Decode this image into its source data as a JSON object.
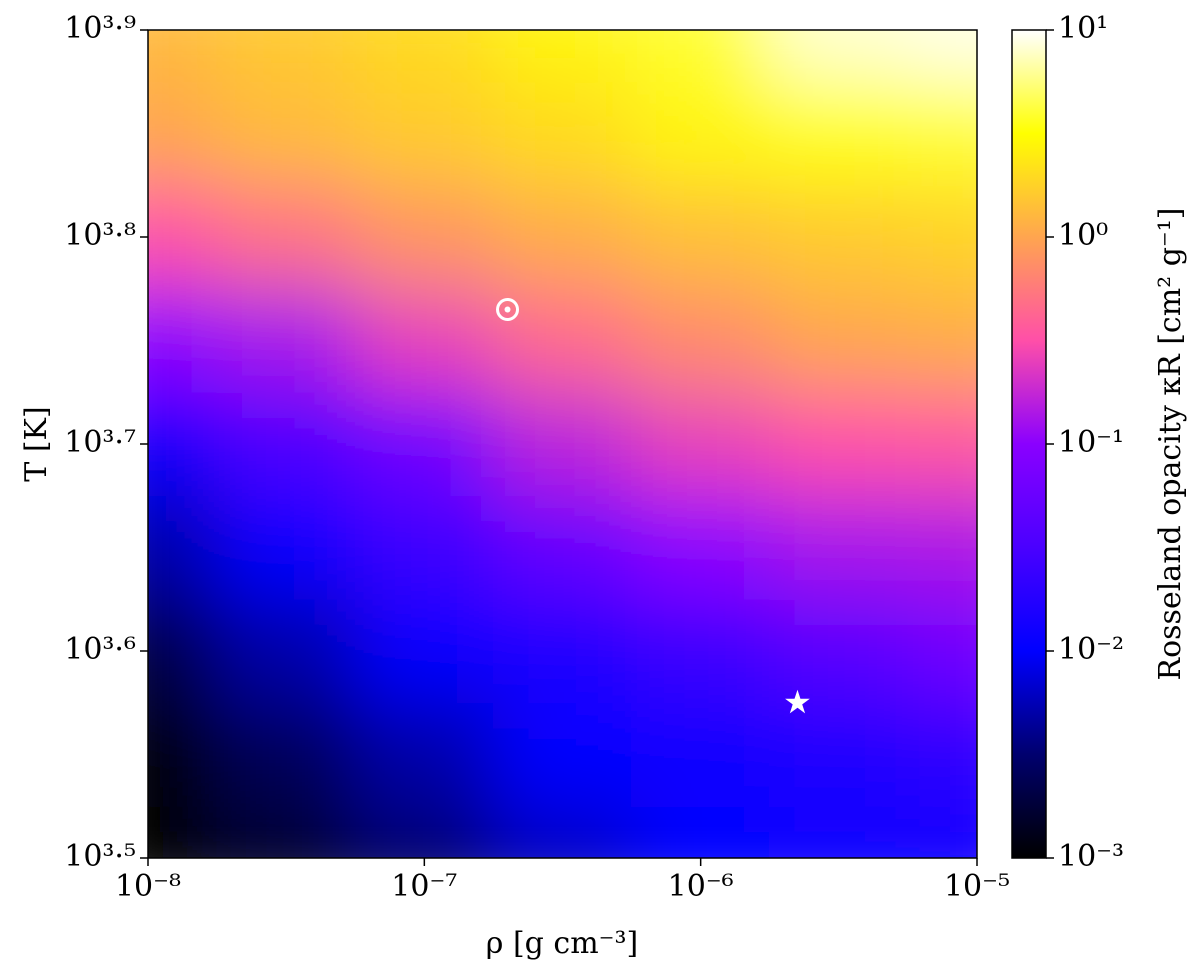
{
  "chart_data": {
    "type": "heatmap",
    "xlabel": "ρ [g cm⁻³]",
    "ylabel": "T [K]",
    "colorbar_label": "Rosseland opacity κR [cm² g⁻¹]",
    "xscale": "log",
    "yscale": "log",
    "cscale": "log",
    "x": [
      1e-08,
      3.16e-08,
      1e-07,
      3.16e-07,
      1e-06,
      3.16e-06,
      1e-05
    ],
    "y": [
      3162,
      3548,
      3981,
      4467,
      5012,
      5623,
      6310,
      7079,
      7943
    ],
    "values": [
      [
        0.001,
        0.0016,
        0.0032,
        0.0063,
        0.01,
        0.013,
        0.013
      ],
      [
        0.001,
        0.0025,
        0.005,
        0.01,
        0.013,
        0.016,
        0.02
      ],
      [
        0.002,
        0.005,
        0.01,
        0.016,
        0.025,
        0.04,
        0.063
      ],
      [
        0.005,
        0.01,
        0.025,
        0.05,
        0.1,
        0.13,
        0.14
      ],
      [
        0.01,
        0.032,
        0.063,
        0.16,
        0.25,
        0.32,
        0.35
      ],
      [
        0.1,
        0.13,
        0.25,
        0.45,
        0.7,
        1.0,
        1.1
      ],
      [
        0.32,
        0.5,
        0.8,
        1.1,
        1.4,
        1.6,
        1.8
      ],
      [
        1.0,
        1.3,
        1.6,
        2.0,
        2.8,
        3.5,
        4.0
      ],
      [
        1.3,
        1.6,
        2.0,
        2.8,
        4.0,
        8.0,
        9.0
      ]
    ],
    "xlim": [
      1e-08,
      1e-05
    ],
    "ylim": [
      3162.28,
      7943.28
    ],
    "clim": [
      0.001,
      10
    ],
    "xticks": [
      {
        "value": 1e-08,
        "label": "10⁻⁸"
      },
      {
        "value": 1e-07,
        "label": "10⁻⁷"
      },
      {
        "value": 1e-06,
        "label": "10⁻⁶"
      },
      {
        "value": 1e-05,
        "label": "10⁻⁵"
      }
    ],
    "yticks": [
      {
        "value": 3162.28,
        "label": "10³·⁵"
      },
      {
        "value": 3981.07,
        "label": "10³·⁶"
      },
      {
        "value": 5011.87,
        "label": "10³·⁷"
      },
      {
        "value": 6309.57,
        "label": "10³·⁸"
      },
      {
        "value": 7943.28,
        "label": "10³·⁹"
      }
    ],
    "cticks": [
      {
        "value": 0.001,
        "label": "10⁻³"
      },
      {
        "value": 0.01,
        "label": "10⁻²"
      },
      {
        "value": 0.1,
        "label": "10⁻¹"
      },
      {
        "value": 1,
        "label": "10⁰"
      },
      {
        "value": 10,
        "label": "10¹"
      }
    ],
    "colormap": [
      "#000000",
      "#00006e",
      "#0000ff",
      "#4a00ff",
      "#8a00ff",
      "#ff4fa8",
      "#ffa54f",
      "#ffff00",
      "#ffffff"
    ],
    "markers": [
      {
        "x": 2e-07,
        "y": 5821,
        "marker": "sun",
        "color": "#ffffff"
      },
      {
        "x": 2.24e-06,
        "y": 3758,
        "marker": "star",
        "color": "#ffffff"
      }
    ]
  }
}
